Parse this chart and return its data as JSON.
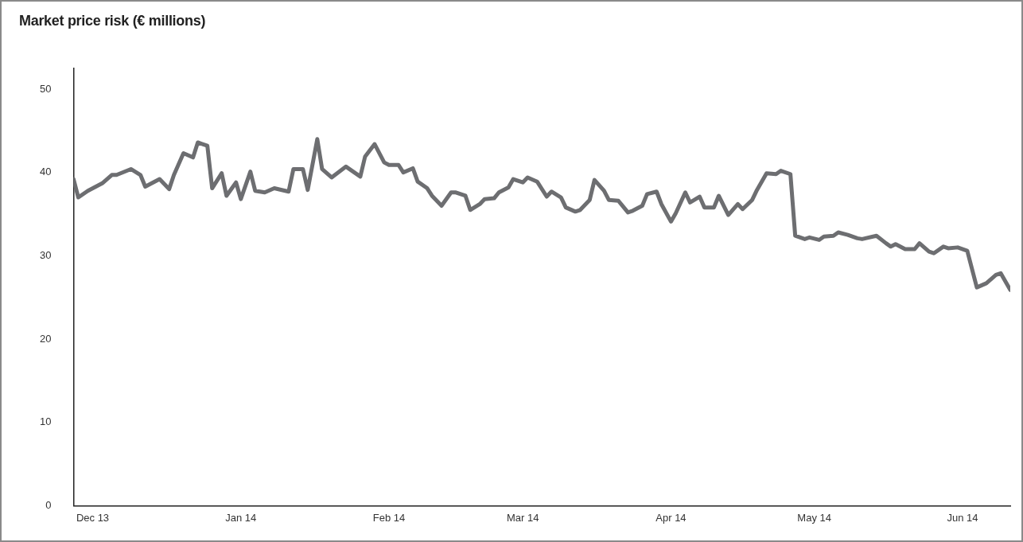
{
  "chart_data": {
    "type": "line",
    "title": "Market price risk (€ millions)",
    "x": [
      "2013-11-27",
      "2013-11-28",
      "2013-11-30",
      "2013-12-03",
      "2013-12-05",
      "2013-12-06",
      "2013-12-09",
      "2013-12-11",
      "2013-12-12",
      "2013-12-15",
      "2013-12-17",
      "2013-12-18",
      "2013-12-20",
      "2013-12-22",
      "2013-12-23",
      "2013-12-25",
      "2013-12-26",
      "2013-12-28",
      "2013-12-29",
      "2013-12-31",
      "2014-01-01",
      "2014-01-03",
      "2014-01-04",
      "2014-01-06",
      "2014-01-08",
      "2014-01-11",
      "2014-01-12",
      "2014-01-14",
      "2014-01-15",
      "2014-01-17",
      "2014-01-18",
      "2014-01-20",
      "2014-01-23",
      "2014-01-26",
      "2014-01-27",
      "2014-01-29",
      "2014-01-31",
      "2014-02-01",
      "2014-02-03",
      "2014-02-04",
      "2014-02-06",
      "2014-02-07",
      "2014-02-09",
      "2014-02-10",
      "2014-02-12",
      "2014-02-14",
      "2014-02-15",
      "2014-02-17",
      "2014-02-18",
      "2014-02-20",
      "2014-02-21",
      "2014-02-23",
      "2014-02-24",
      "2014-02-26",
      "2014-02-27",
      "2014-03-01",
      "2014-03-02",
      "2014-03-04",
      "2014-03-06",
      "2014-03-07",
      "2014-03-09",
      "2014-03-10",
      "2014-03-12",
      "2014-03-13",
      "2014-03-15",
      "2014-03-16",
      "2014-03-18",
      "2014-03-19",
      "2014-03-21",
      "2014-03-23",
      "2014-03-24",
      "2014-03-26",
      "2014-03-27",
      "2014-03-29",
      "2014-03-30",
      "2014-04-01",
      "2014-04-02",
      "2014-04-04",
      "2014-04-05",
      "2014-04-07",
      "2014-04-08",
      "2014-04-10",
      "2014-04-11",
      "2014-04-13",
      "2014-04-15",
      "2014-04-16",
      "2014-04-18",
      "2014-04-19",
      "2014-04-21",
      "2014-04-23",
      "2014-04-24",
      "2014-04-26",
      "2014-04-27",
      "2014-04-29",
      "2014-04-30",
      "2014-05-02",
      "2014-05-03",
      "2014-05-05",
      "2014-05-06",
      "2014-05-08",
      "2014-05-10",
      "2014-05-11",
      "2014-05-14",
      "2014-05-16",
      "2014-05-17",
      "2014-05-18",
      "2014-05-20",
      "2014-05-22",
      "2014-05-23",
      "2014-05-25",
      "2014-05-26",
      "2014-05-28",
      "2014-05-29",
      "2014-05-31",
      "2014-06-02",
      "2014-06-04",
      "2014-06-06",
      "2014-06-08",
      "2014-06-09",
      "2014-06-11"
    ],
    "series": [
      {
        "color": "#6d6e71",
        "values": [
          39.2,
          37.0,
          37.8,
          38.7,
          39.7,
          39.7,
          40.4,
          39.7,
          38.3,
          39.2,
          38.0,
          39.7,
          42.3,
          41.8,
          43.6,
          43.2,
          38.1,
          39.9,
          37.2,
          38.8,
          36.8,
          40.1,
          37.8,
          37.6,
          38.1,
          37.7,
          40.4,
          40.4,
          37.9,
          44.0,
          40.4,
          39.4,
          40.7,
          39.5,
          41.9,
          43.4,
          41.2,
          40.9,
          40.9,
          40.0,
          40.5,
          38.9,
          38.1,
          37.2,
          36.0,
          37.6,
          37.6,
          37.2,
          35.5,
          36.2,
          36.8,
          36.9,
          37.6,
          38.2,
          39.2,
          38.8,
          39.4,
          38.9,
          37.1,
          37.7,
          37.0,
          35.8,
          35.3,
          35.5,
          36.7,
          39.1,
          37.8,
          36.7,
          36.6,
          35.2,
          35.4,
          36.0,
          37.4,
          37.7,
          36.2,
          34.1,
          35.1,
          37.6,
          36.4,
          37.1,
          35.8,
          35.8,
          37.2,
          34.9,
          36.2,
          35.6,
          36.7,
          37.9,
          39.9,
          39.8,
          40.2,
          39.8,
          32.4,
          32.0,
          32.2,
          31.9,
          32.3,
          32.4,
          32.8,
          32.5,
          32.1,
          32.0,
          32.4,
          31.5,
          31.1,
          31.4,
          30.8,
          30.8,
          31.5,
          30.5,
          30.3,
          31.1,
          30.9,
          31.0,
          30.6,
          26.2,
          26.7,
          27.7,
          27.9,
          25.9
        ]
      }
    ],
    "xlim": [
      "2013-11-27",
      "2014-06-11"
    ],
    "xticks": [
      {
        "value": "2013-12-01",
        "label": "Dec 13"
      },
      {
        "value": "2014-01-01",
        "label": "Jan 14"
      },
      {
        "value": "2014-02-01",
        "label": "Feb 14"
      },
      {
        "value": "2014-03-01",
        "label": "Mar 14"
      },
      {
        "value": "2014-04-01",
        "label": "Apr 14"
      },
      {
        "value": "2014-05-01",
        "label": "May 14"
      },
      {
        "value": "2014-06-01",
        "label": "Jun 14"
      }
    ],
    "ylim": [
      0,
      52.5
    ],
    "yticks": [
      0,
      10,
      20,
      30,
      40,
      50
    ],
    "grid": false,
    "legend": false,
    "marker": "none",
    "line_style": "solid"
  }
}
